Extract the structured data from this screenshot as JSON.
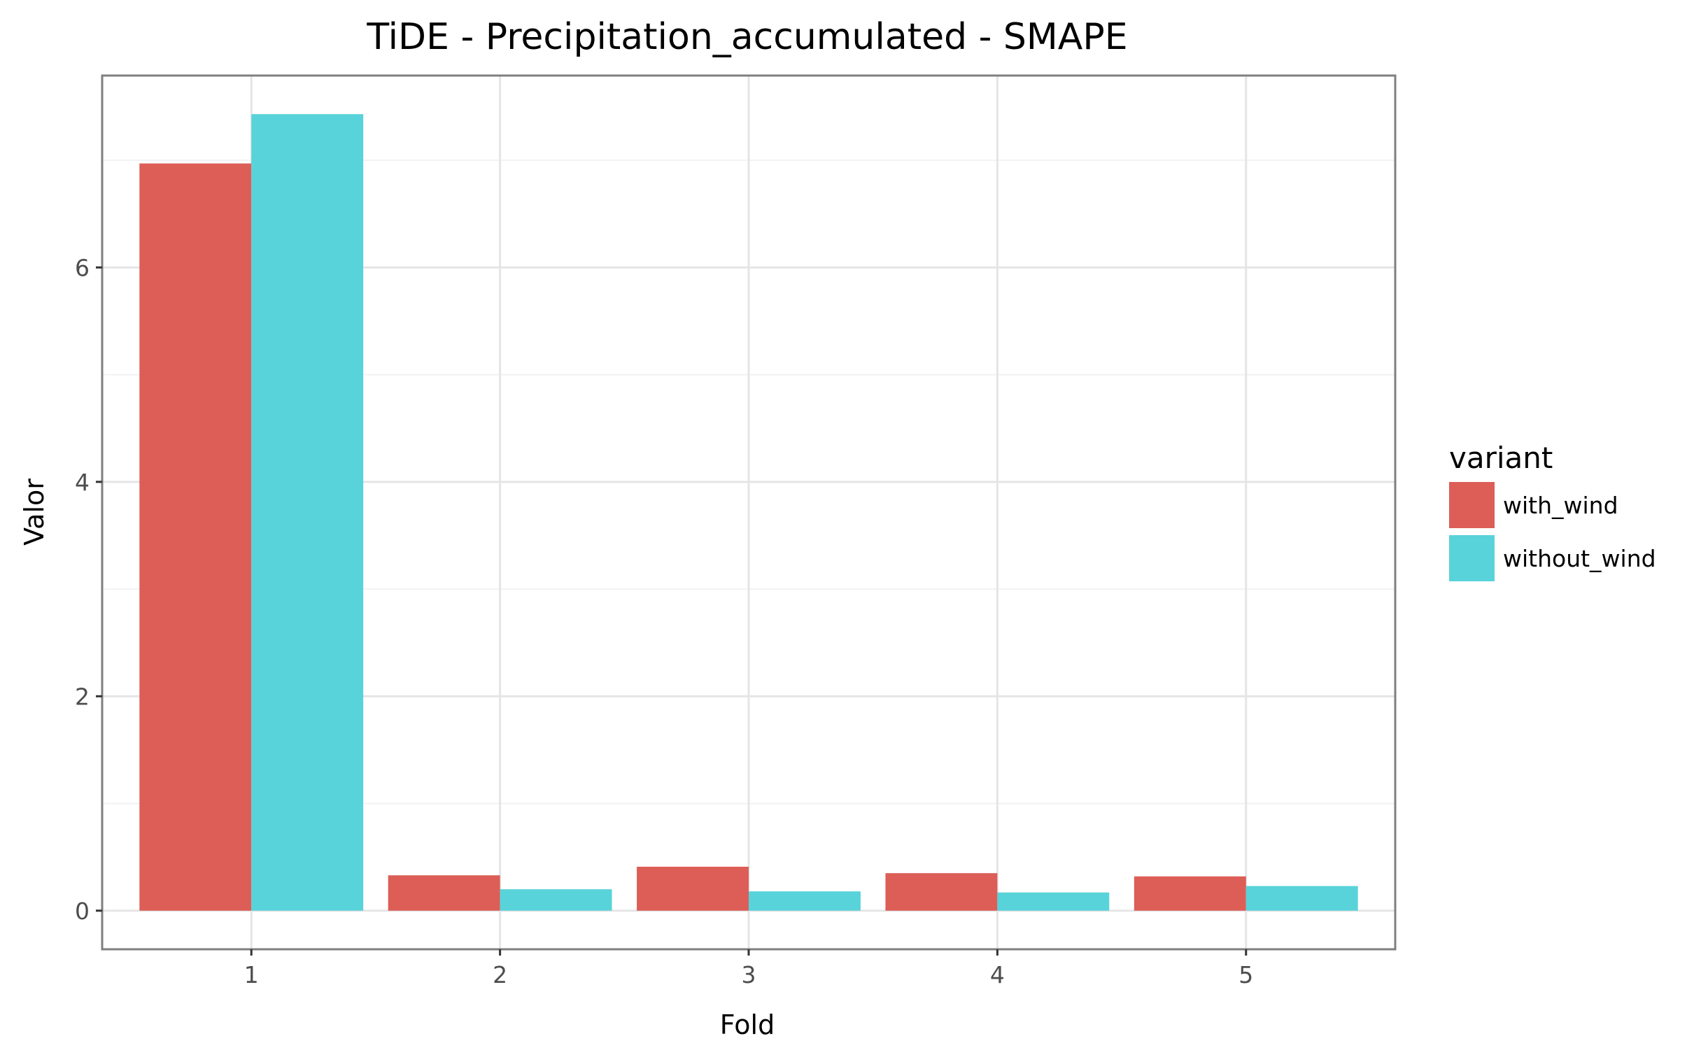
{
  "chart_data": {
    "type": "bar",
    "title": "TiDE - Precipitation_accumulated - SMAPE",
    "xlabel": "Fold",
    "ylabel": "Valor",
    "categories": [
      "1",
      "2",
      "3",
      "4",
      "5"
    ],
    "series": [
      {
        "name": "with_wind",
        "color": "#DC5E57",
        "values": [
          6.97,
          0.33,
          0.41,
          0.35,
          0.32
        ]
      },
      {
        "name": "without_wind",
        "color": "#59D3DA",
        "values": [
          7.43,
          0.2,
          0.18,
          0.17,
          0.23
        ]
      }
    ],
    "ylim": [
      -0.36,
      7.79
    ],
    "yticks": [
      0,
      2,
      4,
      6
    ],
    "yticks_minor": [
      1,
      3,
      5,
      7
    ],
    "grid": true,
    "legend": {
      "title": "variant",
      "position": "right"
    }
  }
}
